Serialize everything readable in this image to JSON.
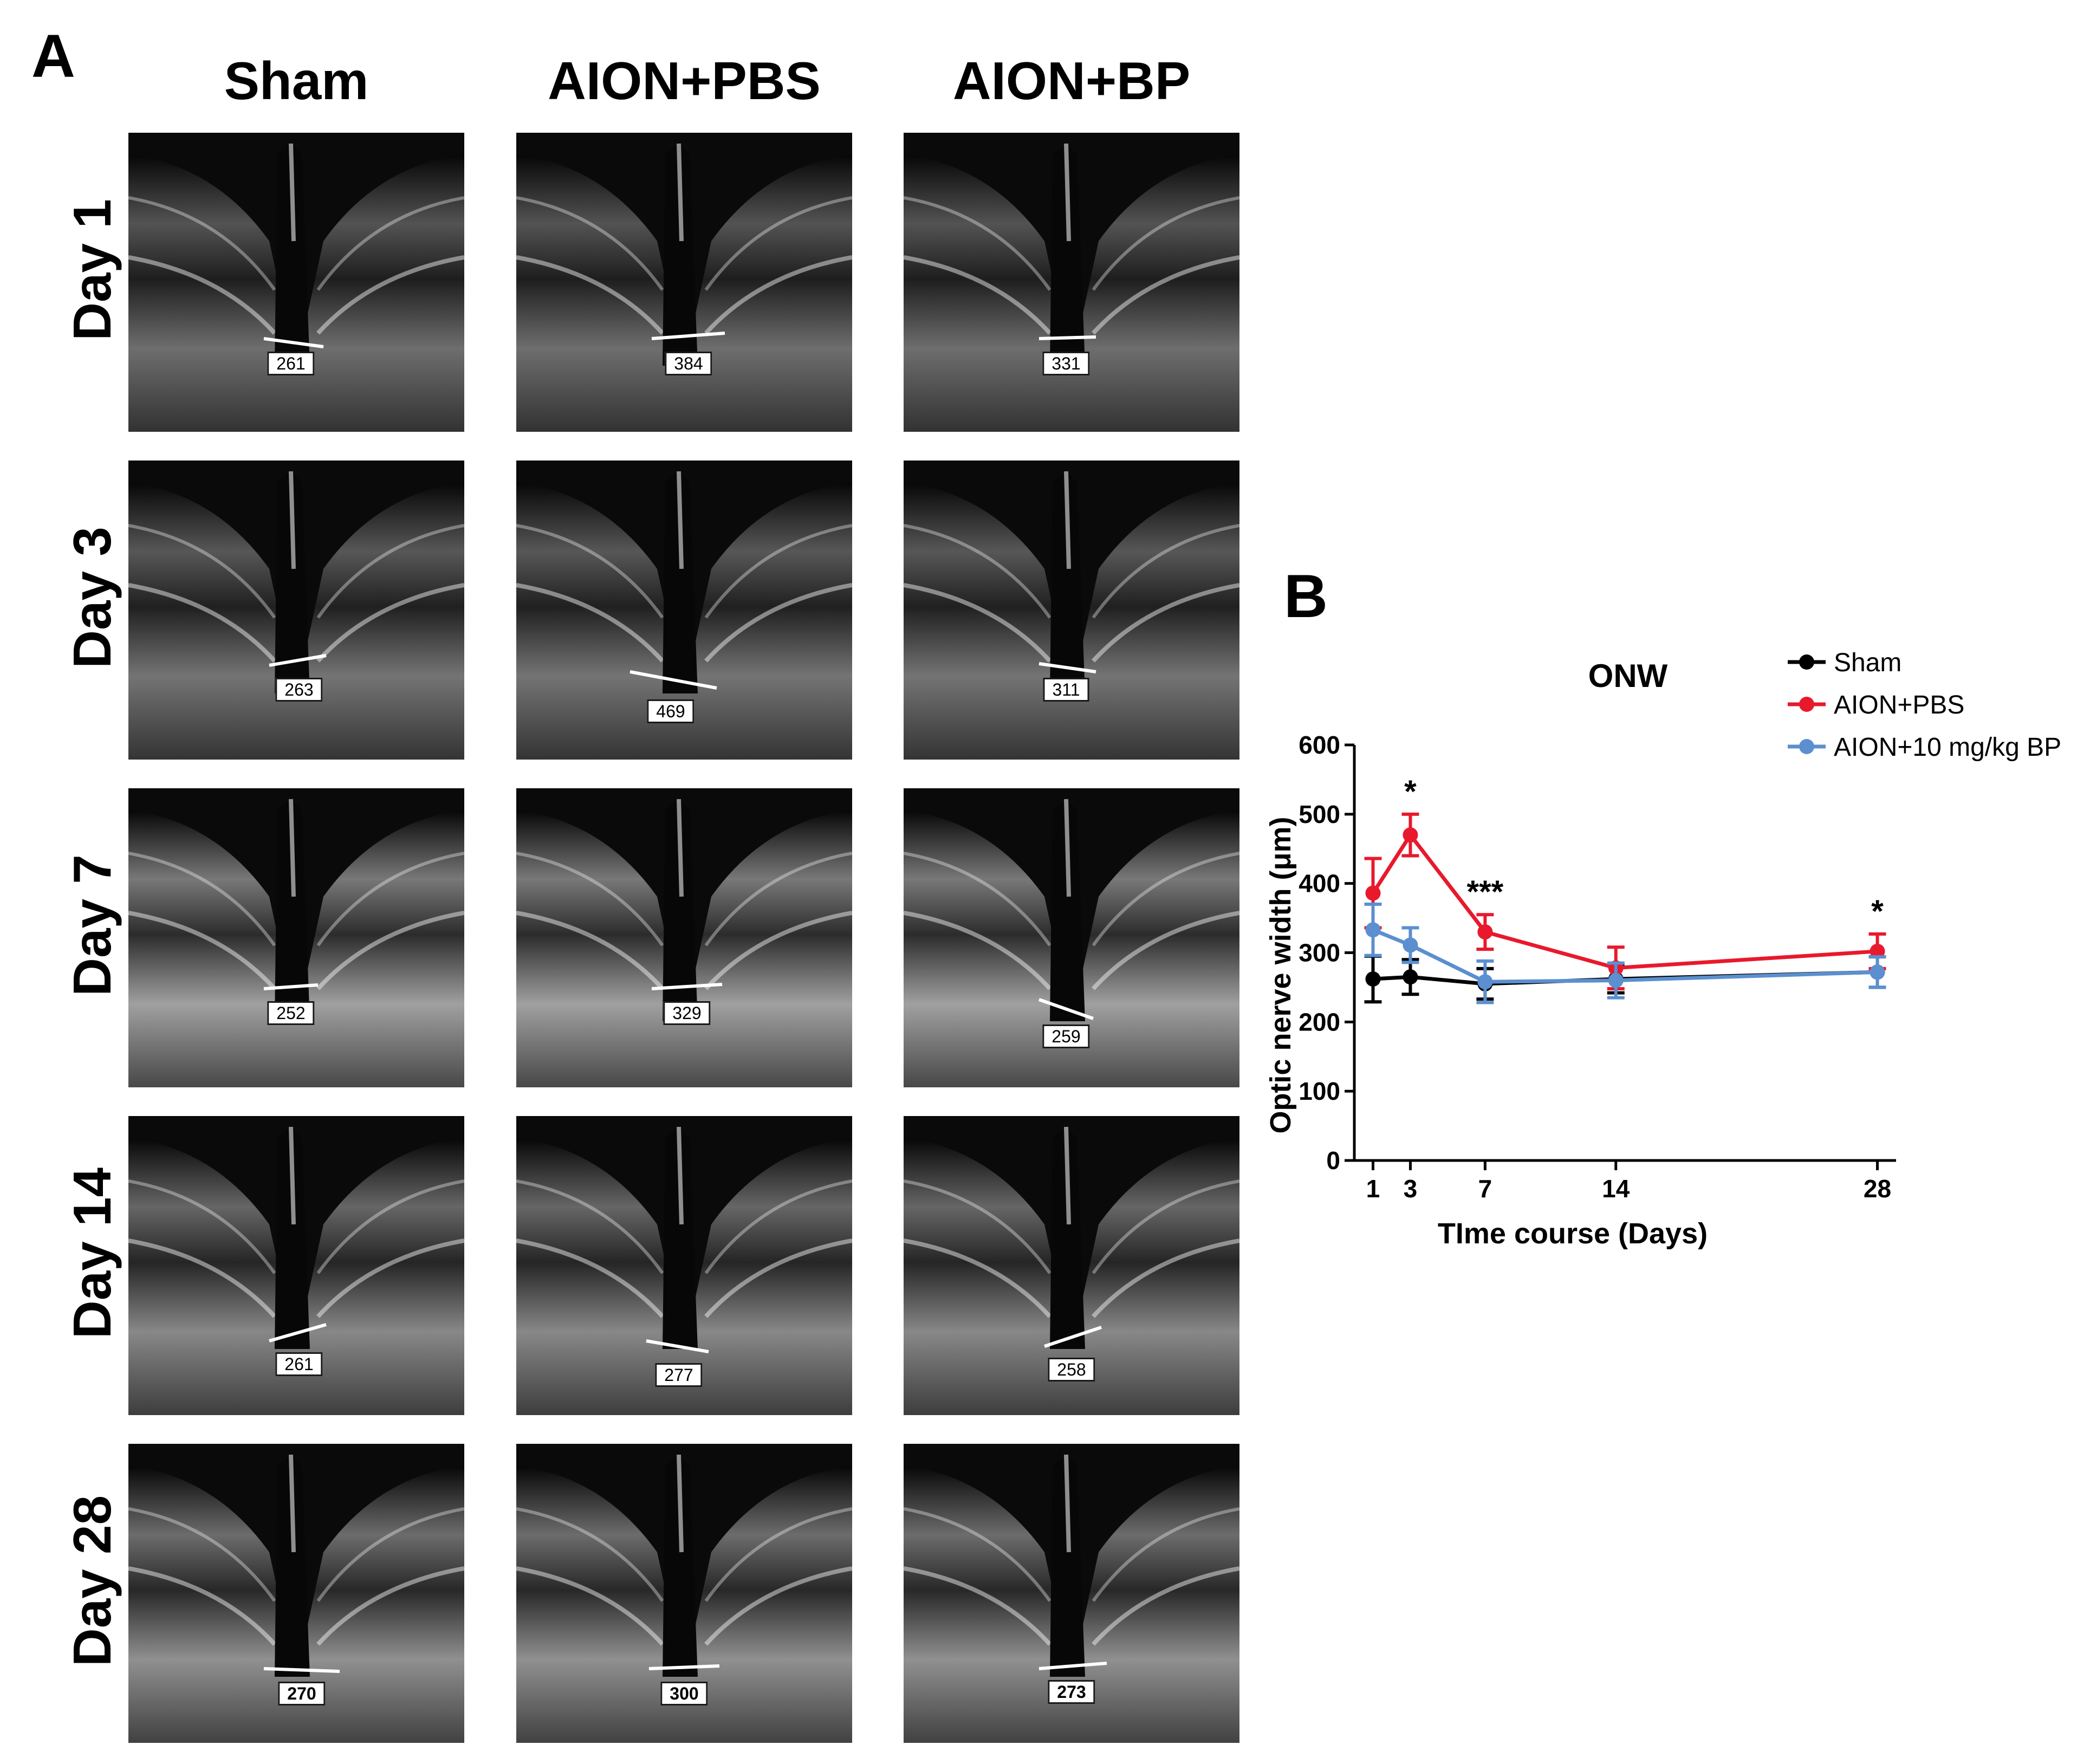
{
  "panel_a_label": "A",
  "panel_b_label": "B",
  "columns": [
    "Sham",
    "AION+PBS",
    "AION+BP"
  ],
  "rows": [
    "Day 1",
    "Day 3",
    "Day 7",
    "Day 14",
    "Day 28"
  ],
  "measurements": [
    [
      "261",
      "384",
      "331"
    ],
    [
      "263",
      "469",
      "311"
    ],
    [
      "252",
      "329",
      "259"
    ],
    [
      "261",
      "277",
      "258"
    ],
    [
      "270",
      "300",
      "273"
    ]
  ],
  "chart_data": {
    "type": "line",
    "title": "ONW",
    "xlabel": "TIme course (Days)",
    "ylabel": "Optic nerve width (μm)",
    "x": [
      1,
      3,
      7,
      14,
      28
    ],
    "xticks": [
      1,
      3,
      7,
      14,
      28
    ],
    "xlim": [
      0,
      29
    ],
    "ylim": [
      0,
      600
    ],
    "yticks": [
      0,
      100,
      200,
      300,
      400,
      500,
      600
    ],
    "grid": false,
    "legend_position": "top-right",
    "series": [
      {
        "name": "Sham",
        "color": "#000000",
        "values": [
          262,
          265,
          255,
          262,
          272
        ],
        "errors": [
          33,
          25,
          22,
          20,
          22
        ]
      },
      {
        "name": "AION+PBS",
        "color": "#e8192c",
        "values": [
          386,
          470,
          330,
          278,
          302
        ],
        "errors": [
          50,
          30,
          25,
          30,
          25
        ]
      },
      {
        "name": "AION+10 mg/kg BP",
        "color": "#5b8fd0",
        "values": [
          333,
          311,
          258,
          260,
          272
        ],
        "errors": [
          37,
          25,
          30,
          25,
          22
        ]
      }
    ],
    "annotations": [
      {
        "text": "*",
        "x": 3
      },
      {
        "text": "***",
        "x": 7
      },
      {
        "text": "*",
        "x": 28
      }
    ]
  }
}
